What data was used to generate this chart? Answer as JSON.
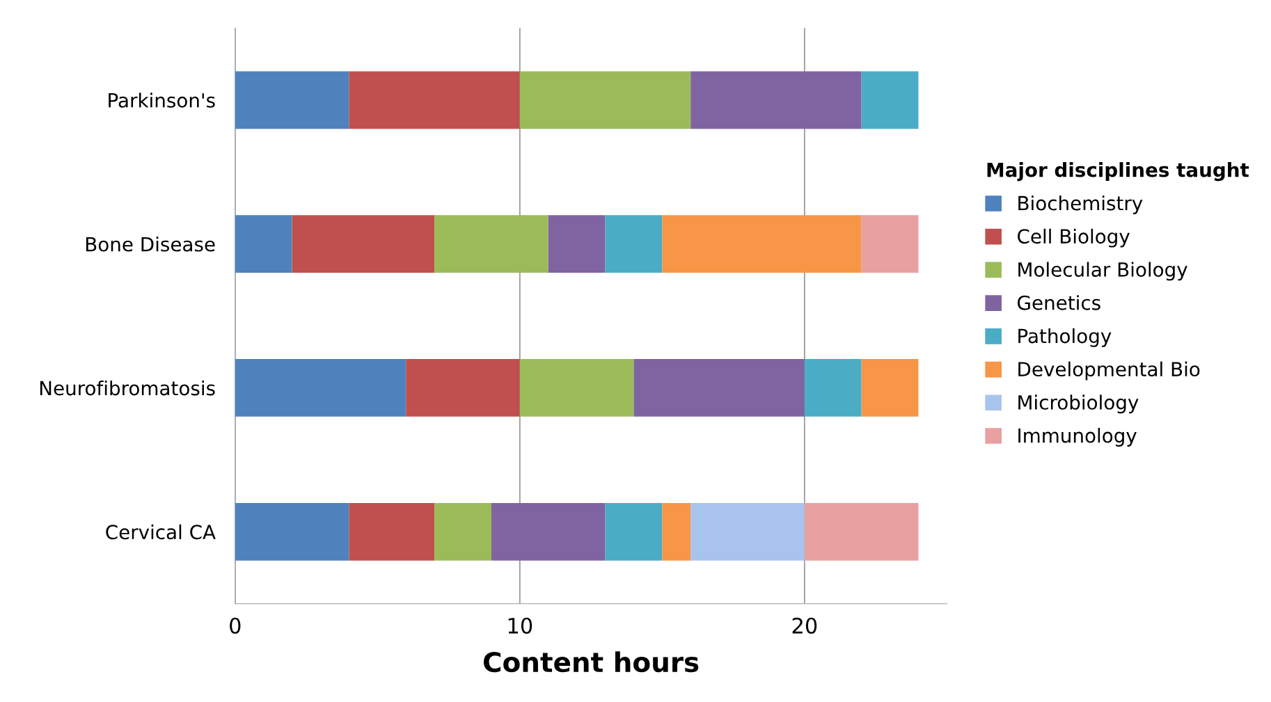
{
  "chart_data": {
    "type": "bar",
    "orientation": "horizontal",
    "stacked": true,
    "categories": [
      "Parkinson's",
      "Bone Disease",
      "Neurofibromatosis",
      "Cervical CA"
    ],
    "series": [
      {
        "name": "Biochemistry",
        "color": "#4f81bd",
        "values": [
          4,
          2,
          6,
          4
        ]
      },
      {
        "name": "Cell Biology",
        "color": "#c0504d",
        "values": [
          6,
          5,
          4,
          3
        ]
      },
      {
        "name": "Molecular Biology",
        "color": "#9bbb59",
        "values": [
          6,
          4,
          4,
          2
        ]
      },
      {
        "name": "Genetics",
        "color": "#8064a2",
        "values": [
          6,
          2,
          6,
          4
        ]
      },
      {
        "name": "Pathology",
        "color": "#4bacc6",
        "values": [
          2,
          2,
          2,
          2
        ]
      },
      {
        "name": "Developmental Bio",
        "color": "#f79646",
        "values": [
          null,
          7,
          2,
          1
        ]
      },
      {
        "name": "Microbiology",
        "color": "#a9c4ec",
        "values": [
          null,
          null,
          null,
          4
        ]
      },
      {
        "name": "Immunology",
        "color": "#e8a0a0",
        "values": [
          null,
          2,
          null,
          4
        ]
      }
    ],
    "xlabel": "Content hours",
    "legend_title": "Major disciplines taught",
    "xlim": [
      0,
      25
    ],
    "xticks": [
      0,
      10,
      20
    ],
    "grid": "x",
    "legend": "right"
  }
}
